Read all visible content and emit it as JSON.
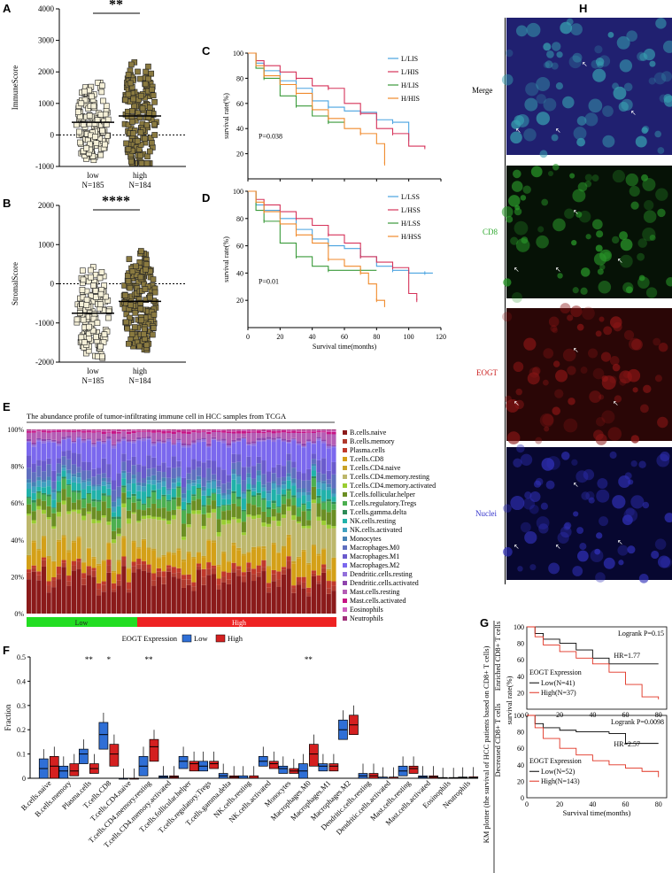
{
  "panels": {
    "A": "A",
    "B": "B",
    "C": "C",
    "D": "D",
    "E": "E",
    "F": "F",
    "G": "G",
    "H": "H"
  },
  "colors": {
    "low": "#2f6fd6",
    "high": "#d42020",
    "km_blue": "#4aa3e0",
    "km_red": "#d6335a",
    "km_green": "#3a9a3a",
    "km_orange": "#f08a2c",
    "green_bar": "#22dd22",
    "red_bar": "#ee2222"
  },
  "chart_data": [
    {
      "id": "A",
      "type": "scatter",
      "ylabel": "ImmuneScore",
      "yticks": [
        "4000",
        "3000",
        "2000",
        "1000",
        "0",
        "-1000"
      ],
      "ylim": [
        -1000,
        4000
      ],
      "categories": [
        "low",
        "high"
      ],
      "group_n": [
        "N=185",
        "N=184"
      ],
      "means": [
        400,
        600
      ],
      "ranges": [
        [
          -900,
          2000
        ],
        [
          -900,
          3100
        ]
      ],
      "significance": "**"
    },
    {
      "id": "B",
      "type": "scatter",
      "ylabel": "StromalScore",
      "yticks": [
        "2000",
        "1000",
        "0",
        "-1000",
        "-2000"
      ],
      "ylim": [
        -2000,
        2000
      ],
      "categories": [
        "low",
        "high"
      ],
      "group_n": [
        "N=185",
        "N=184"
      ],
      "means": [
        -750,
        -450
      ],
      "ranges": [
        [
          -1900,
          700
        ],
        [
          -1900,
          1200
        ]
      ],
      "significance": "****"
    },
    {
      "id": "C",
      "type": "line",
      "ylabel": "survival rate(%)",
      "yticks": [
        "100",
        "80",
        "60",
        "40",
        "20"
      ],
      "xlim": [
        0,
        120
      ],
      "ylim": [
        0,
        100
      ],
      "annotation": "P=0.038",
      "series": [
        {
          "name": "L/LIS",
          "x": [
            0,
            5,
            10,
            20,
            30,
            40,
            50,
            60,
            70,
            80,
            90,
            100
          ],
          "y": [
            100,
            92,
            86,
            78,
            72,
            62,
            57,
            54,
            53,
            47,
            45,
            30
          ]
        },
        {
          "name": "L/HIS",
          "x": [
            0,
            5,
            10,
            20,
            30,
            40,
            50,
            60,
            70,
            80,
            90,
            100,
            110
          ],
          "y": [
            100,
            94,
            90,
            85,
            80,
            74,
            72,
            60,
            52,
            40,
            36,
            26,
            25
          ]
        },
        {
          "name": "H/LIS",
          "x": [
            0,
            5,
            10,
            20,
            30,
            40,
            50,
            60
          ],
          "y": [
            100,
            88,
            80,
            66,
            58,
            50,
            45,
            45
          ]
        },
        {
          "name": "H/HIS",
          "x": [
            0,
            5,
            10,
            20,
            30,
            40,
            50,
            60,
            70,
            80,
            85
          ],
          "y": [
            100,
            90,
            82,
            75,
            68,
            55,
            48,
            40,
            36,
            28,
            12
          ]
        }
      ]
    },
    {
      "id": "D",
      "type": "line",
      "ylabel": "survival rate(%)",
      "xlabel": "Survival time(months)",
      "yticks": [
        "100",
        "80",
        "60",
        "40",
        "20"
      ],
      "xticks": [
        "0",
        "20",
        "40",
        "60",
        "80",
        "100",
        "120"
      ],
      "xlim": [
        0,
        120
      ],
      "ylim": [
        0,
        100
      ],
      "annotation": "P=0.01",
      "series": [
        {
          "name": "L/LSS",
          "x": [
            0,
            5,
            10,
            20,
            30,
            40,
            50,
            60,
            70,
            80,
            90,
            100,
            110,
            115
          ],
          "y": [
            100,
            90,
            86,
            80,
            72,
            65,
            60,
            58,
            52,
            45,
            42,
            40,
            40,
            40
          ]
        },
        {
          "name": "L/HSS",
          "x": [
            0,
            5,
            10,
            20,
            30,
            40,
            50,
            60,
            70,
            80,
            90,
            100,
            105
          ],
          "y": [
            100,
            94,
            90,
            85,
            80,
            75,
            68,
            62,
            52,
            48,
            44,
            25,
            20
          ]
        },
        {
          "name": "H/LSS",
          "x": [
            0,
            5,
            10,
            20,
            30,
            40,
            50,
            60,
            70,
            80
          ],
          "y": [
            100,
            86,
            78,
            62,
            52,
            45,
            42,
            42,
            42,
            42
          ]
        },
        {
          "name": "H/HSS",
          "x": [
            0,
            5,
            10,
            20,
            30,
            40,
            50,
            60,
            70,
            75,
            80,
            85
          ],
          "y": [
            100,
            92,
            85,
            76,
            68,
            62,
            50,
            45,
            40,
            32,
            20,
            15
          ]
        }
      ]
    },
    {
      "id": "E",
      "type": "bar",
      "title": "The abundance profile of tumor-infiltrating immune cell in HCC samples from TCGA",
      "yticks": [
        "100%",
        "80%",
        "60%",
        "40%",
        "20%",
        "0%"
      ],
      "groups": [
        "Low",
        "High"
      ],
      "legend": [
        "B.cells.naive",
        "B.cells.memory",
        "Plasma.cells",
        "T.cells.CD8",
        "T.cells.CD4.naive",
        "T.cells.CD4.memory.resting",
        "T.cells.CD4.memory.activated",
        "T.cells.follicular.helper",
        "T.cells.regulatory.Tregs",
        "T.cells.gamma.delta",
        "NK.cells.resting",
        "NK.cells.activated",
        "Monocytes",
        "Macrophages.M0",
        "Macrophages.M1",
        "Macrophages.M2",
        "Dendritic.cells.resting",
        "Dendritic.cells.activated",
        "Mast.cells.resting",
        "Mast.cells.activated",
        "Eosinophils",
        "Neutrophils"
      ],
      "legend_colors": [
        "#8b1a1a",
        "#b03a2e",
        "#c0392b",
        "#d4a017",
        "#c9a227",
        "#bdb76b",
        "#9acd32",
        "#6b8e23",
        "#4caf50",
        "#2e8b57",
        "#20b2aa",
        "#40a0c0",
        "#4682b4",
        "#5f6fbf",
        "#6a5acd",
        "#7b68ee",
        "#9370db",
        "#8e44ad",
        "#b55db5",
        "#c71585",
        "#d060c0",
        "#a0307a"
      ],
      "stack_fractions": [
        0.2,
        0.03,
        0.03,
        0.1,
        0.01,
        0.18,
        0.02,
        0.06,
        0.05,
        0.01,
        0.05,
        0.03,
        0.02,
        0.05,
        0.06,
        0.12,
        0.01,
        0.01,
        0.04,
        0.01,
        0.005,
        0.005
      ]
    },
    {
      "id": "F",
      "type": "bar",
      "ylabel": "Fraction",
      "yticks": [
        "0.5",
        "0.4",
        "0.3",
        "0.2",
        "0.1",
        "0"
      ],
      "ylim": [
        0,
        0.5
      ],
      "legend_title": "EOGT Expression",
      "series": [
        {
          "name": "Low"
        },
        {
          "name": "High"
        }
      ],
      "categories": [
        "B.cells.naive",
        "B.cells.memory",
        "Plasma.cells",
        "T.cells.CD8",
        "T.cells.CD4.naive",
        "T.cells.CD4.memory.resting",
        "T.cells.CD4.memory.activated",
        "T.cells.follicular.helper",
        "T.cells.regulatory.Tregs",
        "T.cells.gamma.delta",
        "NK.cells.resting",
        "NK.cells.activated",
        "Monocytes",
        "Macrophages.M0",
        "Macrophages.M1",
        "Macrophages.M2",
        "Dendritic.cells.resting",
        "Dendritic.cells.activated",
        "Mast.cells.resting",
        "Mast.cells.activated",
        "Eosinophils",
        "Neutrophils"
      ],
      "significance": [
        "",
        "",
        "**",
        "*",
        "",
        "**",
        "",
        "",
        "",
        "",
        "",
        "",
        "",
        "**",
        "",
        "",
        "",
        "",
        "",
        "",
        "",
        ""
      ],
      "low_boxes": [
        [
          0,
          0.01,
          0.04,
          0.08
        ],
        [
          0,
          0.01,
          0.03,
          0.05
        ],
        [
          0.06,
          0.08,
          0.1,
          0.12
        ],
        [
          0.12,
          0.15,
          0.18,
          0.23
        ],
        [
          0,
          0,
          0,
          0
        ],
        [
          0.01,
          0.03,
          0.05,
          0.09
        ],
        [
          0,
          0.003,
          0.005,
          0.01
        ],
        [
          0.04,
          0.06,
          0.07,
          0.09
        ],
        [
          0.03,
          0.04,
          0.05,
          0.07
        ],
        [
          0,
          0.005,
          0.01,
          0.02
        ],
        [
          0,
          0,
          0,
          0.01
        ],
        [
          0.05,
          0.06,
          0.07,
          0.09
        ],
        [
          0.02,
          0.03,
          0.04,
          0.05
        ],
        [
          0,
          0.01,
          0.03,
          0.06
        ],
        [
          0.03,
          0.04,
          0.05,
          0.06
        ],
        [
          0.16,
          0.18,
          0.2,
          0.24
        ],
        [
          0,
          0.005,
          0.01,
          0.02
        ],
        [
          0,
          0,
          0,
          0.005
        ],
        [
          0.01,
          0.02,
          0.03,
          0.05
        ],
        [
          0,
          0.003,
          0.005,
          0.01
        ],
        [
          0,
          0,
          0,
          0.003
        ],
        [
          0,
          0,
          0.002,
          0.005
        ]
      ],
      "high_boxes": [
        [
          0,
          0.02,
          0.05,
          0.09
        ],
        [
          0.01,
          0.02,
          0.03,
          0.06
        ],
        [
          0.02,
          0.03,
          0.04,
          0.06
        ],
        [
          0.05,
          0.08,
          0.1,
          0.14
        ],
        [
          0,
          0,
          0,
          0
        ],
        [
          0.07,
          0.1,
          0.13,
          0.16
        ],
        [
          0,
          0.003,
          0.005,
          0.01
        ],
        [
          0.03,
          0.05,
          0.06,
          0.07
        ],
        [
          0.04,
          0.05,
          0.06,
          0.07
        ],
        [
          0,
          0.003,
          0.005,
          0.01
        ],
        [
          0,
          0,
          0,
          0.01
        ],
        [
          0.04,
          0.05,
          0.06,
          0.07
        ],
        [
          0.02,
          0.025,
          0.03,
          0.04
        ],
        [
          0.05,
          0.08,
          0.1,
          0.14
        ],
        [
          0.03,
          0.04,
          0.05,
          0.06
        ],
        [
          0.18,
          0.2,
          0.22,
          0.26
        ],
        [
          0,
          0.005,
          0.01,
          0.02
        ],
        [
          0,
          0,
          0,
          0.005
        ],
        [
          0.02,
          0.03,
          0.04,
          0.05
        ],
        [
          0,
          0.003,
          0.005,
          0.01
        ],
        [
          0,
          0,
          0,
          0.003
        ],
        [
          0,
          0,
          0.002,
          0.006
        ]
      ]
    },
    {
      "id": "G",
      "type": "line",
      "ylabel": "survival rate(%)",
      "side_label": "KM plotter (the survival of HCC patients based on CD8+ T cells)",
      "group_labels": [
        "Enriched CD8+ T cells",
        "Decreased CD8+ T cells"
      ],
      "xlabel": "Survival time(months)",
      "xticks": [
        "0",
        "20",
        "40",
        "60",
        "80"
      ],
      "yticks": [
        "100",
        "80",
        "60",
        "40",
        "20",
        "0"
      ],
      "legend_title": "EOGT Expression",
      "subplots": [
        {
          "stat": "Logrank P=0.15",
          "hr": "HR=1.77",
          "series": [
            {
              "name": "Low(N=41)",
              "x": [
                0,
                5,
                10,
                20,
                30,
                40,
                50,
                60,
                70,
                80
              ],
              "y": [
                100,
                92,
                85,
                80,
                72,
                62,
                55,
                55,
                55,
                55
              ]
            },
            {
              "name": "High(N=37)",
              "x": [
                0,
                5,
                10,
                20,
                30,
                40,
                50,
                60,
                70,
                80
              ],
              "y": [
                100,
                88,
                78,
                70,
                62,
                55,
                45,
                30,
                15,
                12
              ]
            }
          ]
        },
        {
          "stat": "Logrank P=0.0098",
          "hr": "HR=2.57",
          "series": [
            {
              "name": "Low(N=52)",
              "x": [
                0,
                5,
                10,
                20,
                30,
                40,
                50,
                60,
                70,
                80
              ],
              "y": [
                100,
                90,
                85,
                82,
                80,
                80,
                78,
                66,
                66,
                66
              ]
            },
            {
              "name": "High(N=143)",
              "x": [
                0,
                5,
                10,
                20,
                30,
                40,
                50,
                60,
                70,
                80,
                90,
                100,
                110
              ],
              "y": [
                100,
                85,
                72,
                60,
                52,
                45,
                40,
                36,
                32,
                25,
                20,
                20,
                20
              ]
            }
          ]
        }
      ]
    }
  ],
  "micrographs": {
    "labels": [
      "Merge",
      "CD8",
      "EOGT",
      "Nuclei"
    ],
    "label_colors": [
      "#000000",
      "#33aa33",
      "#cc2222",
      "#3333cc"
    ],
    "bg": [
      "#202070",
      "#061206",
      "#2a0606",
      "#070730"
    ],
    "spot": [
      "#37a0b0",
      "#2a9a2a",
      "#8c1616",
      "#3030b8"
    ]
  }
}
